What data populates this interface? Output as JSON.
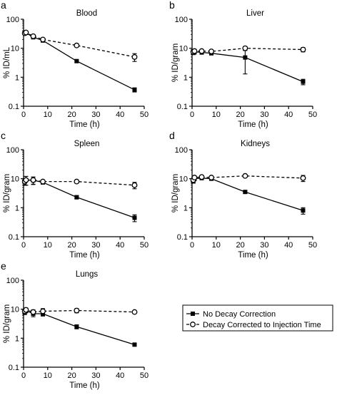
{
  "legend": {
    "position": "lower-right",
    "entries": [
      {
        "label": "No Decay Correction",
        "marker": "filled-square",
        "line": "solid"
      },
      {
        "label": "Decay Corrected to Injection Time",
        "marker": "open-circle",
        "line": "dashed"
      }
    ]
  },
  "chart_data": [
    {
      "type": "line",
      "panel_letter": "a",
      "title": "Blood",
      "xlabel": "Time (h)",
      "ylabel": "% ID/mL",
      "yscale": "log",
      "xlim": [
        0,
        50
      ],
      "ylim": [
        0.1,
        100
      ],
      "xticks": [
        "0",
        "10",
        "20",
        "30",
        "40",
        "50"
      ],
      "yticks": [
        "0.1",
        "1",
        "10",
        "100"
      ],
      "series": [
        {
          "name": "No Decay Correction",
          "x": [
            0.5,
            1,
            4,
            8,
            22,
            46
          ],
          "y": [
            33,
            34,
            24,
            18.5,
            3.6,
            0.37
          ],
          "err": [
            3,
            4,
            3,
            2,
            0.3,
            0.06
          ]
        },
        {
          "name": "Decay Corrected to Injection Time",
          "x": [
            0.5,
            1,
            4,
            8,
            22,
            46
          ],
          "y": [
            33,
            35,
            26,
            20,
            12.5,
            5
          ],
          "err": [
            3,
            4,
            3,
            2,
            1,
            1.5
          ]
        }
      ]
    },
    {
      "type": "line",
      "panel_letter": "b",
      "title": "Liver",
      "xlabel": "Time (h)",
      "ylabel": "% ID/gram",
      "yscale": "log",
      "xlim": [
        0,
        50
      ],
      "ylim": [
        0.1,
        100
      ],
      "xticks": [
        "0",
        "10",
        "20",
        "30",
        "40",
        "50"
      ],
      "yticks": [
        "0.1",
        "1",
        "10",
        "100"
      ],
      "series": [
        {
          "name": "No Decay Correction",
          "x": [
            0.5,
            1,
            4,
            8,
            22,
            46
          ],
          "y": [
            7,
            7.5,
            7.2,
            6.7,
            4.8,
            0.7
          ],
          "err": [
            1,
            1.2,
            1,
            0.8,
            3.5,
            0.15
          ]
        },
        {
          "name": "Decay Corrected to Injection Time",
          "x": [
            0.5,
            1,
            4,
            8,
            22,
            46
          ],
          "y": [
            7.5,
            8,
            8,
            7.8,
            10,
            9
          ],
          "err": [
            1,
            1.2,
            1,
            0.8,
            1.5,
            1.5
          ]
        }
      ]
    },
    {
      "type": "line",
      "panel_letter": "c",
      "title": "Spleen",
      "xlabel": "Time (h)",
      "ylabel": "% ID/gram",
      "yscale": "log",
      "xlim": [
        0,
        50
      ],
      "ylim": [
        0.1,
        100
      ],
      "xticks": [
        "0",
        "10",
        "20",
        "30",
        "40",
        "50"
      ],
      "yticks": [
        "0.1",
        "1",
        "10",
        "100"
      ],
      "series": [
        {
          "name": "No Decay Correction",
          "x": [
            0.5,
            1,
            4,
            8,
            22,
            46
          ],
          "y": [
            8,
            9,
            8.8,
            7.5,
            2.3,
            0.45
          ],
          "err": [
            2,
            3,
            2.5,
            1,
            0.3,
            0.12
          ]
        },
        {
          "name": "Decay Corrected to Injection Time",
          "x": [
            0.5,
            1,
            4,
            8,
            22,
            46
          ],
          "y": [
            8,
            9,
            9,
            8,
            8,
            6
          ],
          "err": [
            2,
            3,
            2.5,
            1,
            1,
            1.5
          ]
        }
      ]
    },
    {
      "type": "line",
      "panel_letter": "d",
      "title": "Kidneys",
      "xlabel": "Time (h)",
      "ylabel": "% ID/gram",
      "yscale": "log",
      "xlim": [
        0,
        50
      ],
      "ylim": [
        0.1,
        100
      ],
      "xticks": [
        "0",
        "10",
        "20",
        "30",
        "40",
        "50"
      ],
      "yticks": [
        "0.1",
        "1",
        "10",
        "100"
      ],
      "series": [
        {
          "name": "No Decay Correction",
          "x": [
            0.5,
            1,
            4,
            8,
            22,
            46
          ],
          "y": [
            8.5,
            10,
            10.5,
            10,
            3.5,
            0.8
          ],
          "err": [
            1.5,
            1.5,
            1.2,
            1,
            0.4,
            0.2
          ]
        },
        {
          "name": "Decay Corrected to Injection Time",
          "x": [
            0.5,
            1,
            4,
            8,
            22,
            46
          ],
          "y": [
            9,
            11,
            11.5,
            11,
            12.5,
            10.5
          ],
          "err": [
            1.5,
            1.5,
            1.2,
            1,
            1,
            2.5
          ]
        }
      ]
    },
    {
      "type": "line",
      "panel_letter": "e",
      "title": "Lungs",
      "xlabel": "Time (h)",
      "ylabel": "% ID/gram",
      "yscale": "log",
      "xlim": [
        0,
        50
      ],
      "ylim": [
        0.1,
        100
      ],
      "xticks": [
        "0",
        "10",
        "20",
        "30",
        "40",
        "50"
      ],
      "yticks": [
        "0.1",
        "1",
        "10",
        "100"
      ],
      "series": [
        {
          "name": "No Decay Correction",
          "x": [
            0.5,
            1,
            4,
            8,
            22,
            46
          ],
          "y": [
            8,
            9,
            7,
            7,
            2.5,
            0.6
          ],
          "err": [
            1.5,
            1.5,
            1.5,
            1.2,
            0.4,
            0.05
          ]
        },
        {
          "name": "Decay Corrected to Injection Time",
          "x": [
            0.5,
            1,
            4,
            8,
            22,
            46
          ],
          "y": [
            8.5,
            9.5,
            8,
            8.5,
            9,
            8
          ],
          "err": [
            1.5,
            1.5,
            1.5,
            2,
            1.5,
            0.6
          ]
        }
      ]
    }
  ]
}
